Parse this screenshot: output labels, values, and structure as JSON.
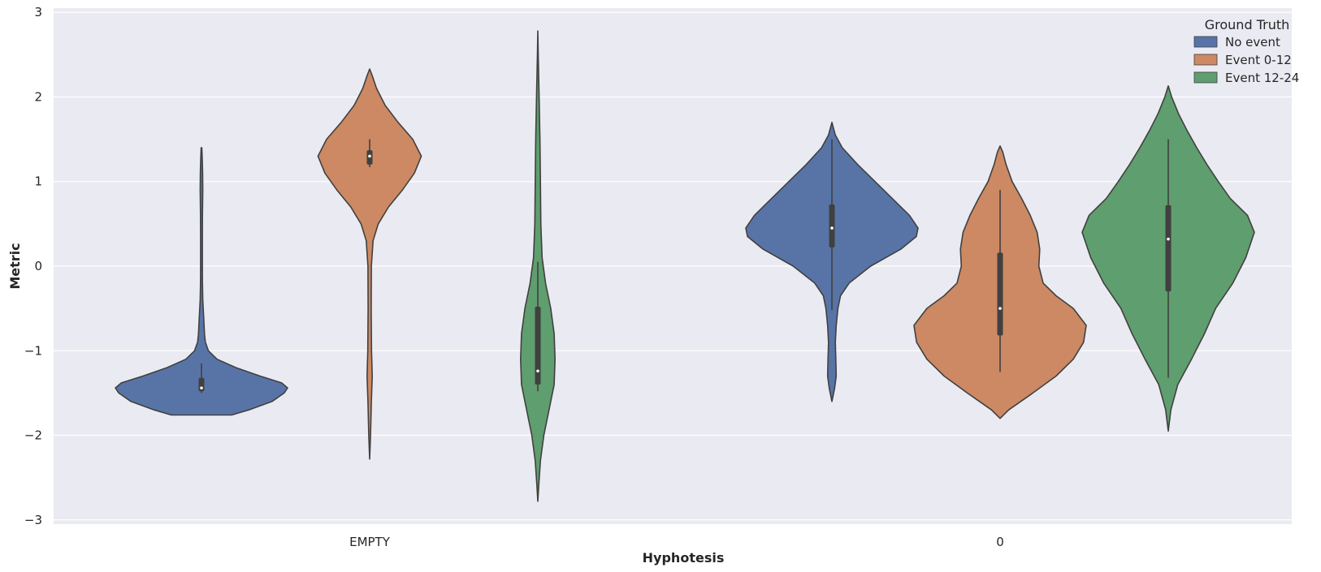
{
  "chart_data": {
    "type": "violin",
    "title": "",
    "xlabel": "Hyphotesis",
    "ylabel": "Metric",
    "ylim": [
      -3.05,
      3.05
    ],
    "yticks": [
      3,
      2,
      1,
      0,
      -1,
      -2,
      -3
    ],
    "ytick_labels": [
      "3",
      "2",
      "1",
      "0",
      "−1",
      "−2",
      "−3"
    ],
    "categories": [
      "EMPTY",
      "0"
    ],
    "grid": true,
    "legend": {
      "title": "Ground Truth",
      "position": "top-right",
      "entries": [
        "No event",
        "Event 0-12",
        "Event 12-24"
      ]
    },
    "series": [
      {
        "name": "No event",
        "color": "#5874a7",
        "violins": [
          {
            "category": "EMPTY",
            "min": -1.76,
            "max": 1.4,
            "q1": -1.48,
            "median": -1.44,
            "q3": -1.32,
            "whisker_low": -1.5,
            "whisker_high": -1.15,
            "density": [
              [
                -1.76,
                0.35
              ],
              [
                -1.7,
                0.55
              ],
              [
                -1.6,
                0.82
              ],
              [
                -1.5,
                0.96
              ],
              [
                -1.44,
                1.0
              ],
              [
                -1.38,
                0.93
              ],
              [
                -1.3,
                0.68
              ],
              [
                -1.2,
                0.4
              ],
              [
                -1.1,
                0.18
              ],
              [
                -1.0,
                0.08
              ],
              [
                -0.9,
                0.045
              ],
              [
                -0.8,
                0.035
              ],
              [
                -0.7,
                0.03
              ],
              [
                -0.6,
                0.025
              ],
              [
                -0.4,
                0.015
              ],
              [
                -0.2,
                0.011
              ],
              [
                0.0,
                0.01
              ],
              [
                0.3,
                0.01
              ],
              [
                0.6,
                0.011
              ],
              [
                0.9,
                0.015
              ],
              [
                1.1,
                0.013
              ],
              [
                1.25,
                0.009
              ],
              [
                1.4,
                0.004
              ]
            ]
          },
          {
            "category": "0",
            "min": -1.6,
            "max": 1.7,
            "q1": 0.22,
            "median": 0.45,
            "q3": 0.73,
            "whisker_low": -0.52,
            "whisker_high": 1.5,
            "density": [
              [
                -1.6,
                0.0
              ],
              [
                -1.45,
                0.03
              ],
              [
                -1.3,
                0.05
              ],
              [
                -1.1,
                0.045
              ],
              [
                -0.9,
                0.04
              ],
              [
                -0.7,
                0.05
              ],
              [
                -0.5,
                0.07
              ],
              [
                -0.35,
                0.1
              ],
              [
                -0.2,
                0.2
              ],
              [
                0.0,
                0.45
              ],
              [
                0.2,
                0.8
              ],
              [
                0.35,
                0.98
              ],
              [
                0.45,
                1.0
              ],
              [
                0.6,
                0.9
              ],
              [
                0.8,
                0.7
              ],
              [
                1.0,
                0.5
              ],
              [
                1.2,
                0.3
              ],
              [
                1.4,
                0.12
              ],
              [
                1.55,
                0.04
              ],
              [
                1.7,
                0.0
              ]
            ]
          }
        ]
      },
      {
        "name": "Event 0-12",
        "color": "#cc8963",
        "violins": [
          {
            "category": "EMPTY",
            "min": -2.28,
            "max": 2.33,
            "q1": 1.2,
            "median": 1.3,
            "q3": 1.37,
            "whisker_low": 1.17,
            "whisker_high": 1.5,
            "density": [
              [
                -2.28,
                0.0
              ],
              [
                -2.0,
                0.01
              ],
              [
                -1.6,
                0.02
              ],
              [
                -1.3,
                0.03
              ],
              [
                -1.0,
                0.022
              ],
              [
                -0.5,
                0.018
              ],
              [
                0.0,
                0.02
              ],
              [
                0.3,
                0.04
              ],
              [
                0.5,
                0.1
              ],
              [
                0.7,
                0.22
              ],
              [
                0.9,
                0.38
              ],
              [
                1.1,
                0.52
              ],
              [
                1.3,
                0.6
              ],
              [
                1.5,
                0.5
              ],
              [
                1.7,
                0.33
              ],
              [
                1.9,
                0.18
              ],
              [
                2.1,
                0.08
              ],
              [
                2.25,
                0.03
              ],
              [
                2.33,
                0.0
              ]
            ]
          },
          {
            "category": "0",
            "min": -1.8,
            "max": 1.42,
            "q1": -0.82,
            "median": -0.5,
            "q3": 0.16,
            "whisker_low": -1.25,
            "whisker_high": 0.9,
            "density": [
              [
                -1.8,
                0.0
              ],
              [
                -1.7,
                0.1
              ],
              [
                -1.5,
                0.38
              ],
              [
                -1.3,
                0.65
              ],
              [
                -1.1,
                0.85
              ],
              [
                -0.9,
                0.97
              ],
              [
                -0.7,
                1.0
              ],
              [
                -0.5,
                0.85
              ],
              [
                -0.35,
                0.65
              ],
              [
                -0.2,
                0.5
              ],
              [
                0.0,
                0.45
              ],
              [
                0.2,
                0.46
              ],
              [
                0.4,
                0.43
              ],
              [
                0.6,
                0.35
              ],
              [
                0.8,
                0.25
              ],
              [
                1.0,
                0.14
              ],
              [
                1.2,
                0.07
              ],
              [
                1.35,
                0.03
              ],
              [
                1.42,
                0.0
              ]
            ]
          }
        ]
      },
      {
        "name": "Event 12-24",
        "color": "#5f9e6e",
        "violins": [
          {
            "category": "EMPTY",
            "min": -2.78,
            "max": 2.78,
            "q1": -1.4,
            "median": -1.24,
            "q3": -0.48,
            "whisker_low": -1.48,
            "whisker_high": 0.05,
            "density": [
              [
                -2.78,
                0.0
              ],
              [
                -2.6,
                0.01
              ],
              [
                -2.3,
                0.03
              ],
              [
                -2.0,
                0.07
              ],
              [
                -1.7,
                0.13
              ],
              [
                -1.4,
                0.19
              ],
              [
                -1.1,
                0.2
              ],
              [
                -0.8,
                0.19
              ],
              [
                -0.5,
                0.15
              ],
              [
                -0.2,
                0.09
              ],
              [
                0.1,
                0.05
              ],
              [
                0.5,
                0.035
              ],
              [
                1.0,
                0.03
              ],
              [
                1.5,
                0.025
              ],
              [
                2.0,
                0.015
              ],
              [
                2.5,
                0.005
              ],
              [
                2.78,
                0.0
              ]
            ]
          },
          {
            "category": "0",
            "min": -1.95,
            "max": 2.13,
            "q1": -0.3,
            "median": 0.32,
            "q3": 0.72,
            "whisker_low": -1.32,
            "whisker_high": 1.5,
            "density": [
              [
                -1.95,
                0.0
              ],
              [
                -1.7,
                0.03
              ],
              [
                -1.4,
                0.11
              ],
              [
                -1.1,
                0.27
              ],
              [
                -0.8,
                0.42
              ],
              [
                -0.5,
                0.55
              ],
              [
                -0.2,
                0.75
              ],
              [
                0.1,
                0.9
              ],
              [
                0.4,
                1.0
              ],
              [
                0.6,
                0.92
              ],
              [
                0.8,
                0.72
              ],
              [
                1.0,
                0.58
              ],
              [
                1.2,
                0.45
              ],
              [
                1.4,
                0.33
              ],
              [
                1.6,
                0.22
              ],
              [
                1.8,
                0.12
              ],
              [
                2.0,
                0.04
              ],
              [
                2.13,
                0.0
              ]
            ]
          }
        ]
      }
    ]
  }
}
